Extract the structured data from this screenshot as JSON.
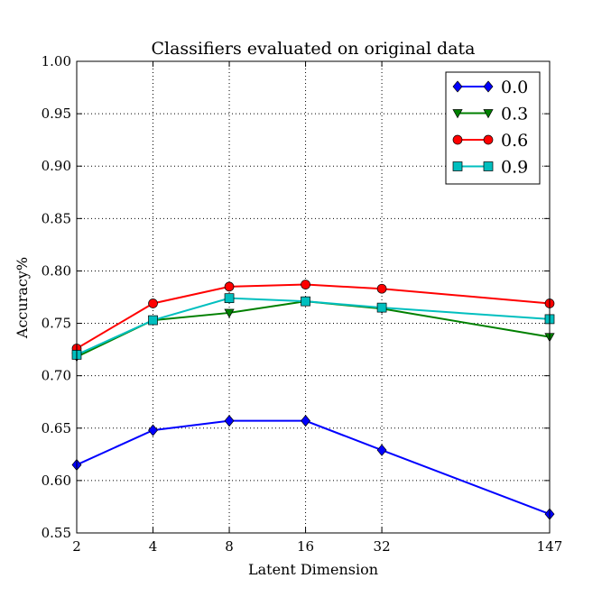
{
  "chart_data": {
    "type": "line",
    "title": "Classifiers evaluated on original data",
    "xlabel": "Latent Dimension",
    "ylabel": "Accuracy%",
    "x_scale": "log2",
    "x": [
      2,
      4,
      8,
      16,
      32,
      147
    ],
    "x_tick_labels": [
      "2",
      "4",
      "8",
      "16",
      "32",
      "147"
    ],
    "ylim": [
      0.55,
      1.0
    ],
    "y_ticks": [
      "0.55",
      "0.60",
      "0.65",
      "0.70",
      "0.75",
      "0.80",
      "0.85",
      "0.90",
      "0.95",
      "1.00"
    ],
    "grid": true,
    "legend_placement": "top-right",
    "series": [
      {
        "name": "0.0",
        "color": "#0000ff",
        "marker": "diamond",
        "values": [
          0.615,
          0.648,
          0.657,
          0.657,
          0.629,
          0.568
        ]
      },
      {
        "name": "0.3",
        "color": "#008000",
        "marker": "triangle-down",
        "values": [
          0.718,
          0.753,
          0.76,
          0.771,
          0.764,
          0.737
        ]
      },
      {
        "name": "0.6",
        "color": "#ff0000",
        "marker": "circle",
        "values": [
          0.726,
          0.769,
          0.785,
          0.787,
          0.783,
          0.769
        ]
      },
      {
        "name": "0.9",
        "color": "#00bfbf",
        "marker": "square",
        "values": [
          0.72,
          0.753,
          0.774,
          0.771,
          0.765,
          0.754
        ]
      }
    ]
  }
}
